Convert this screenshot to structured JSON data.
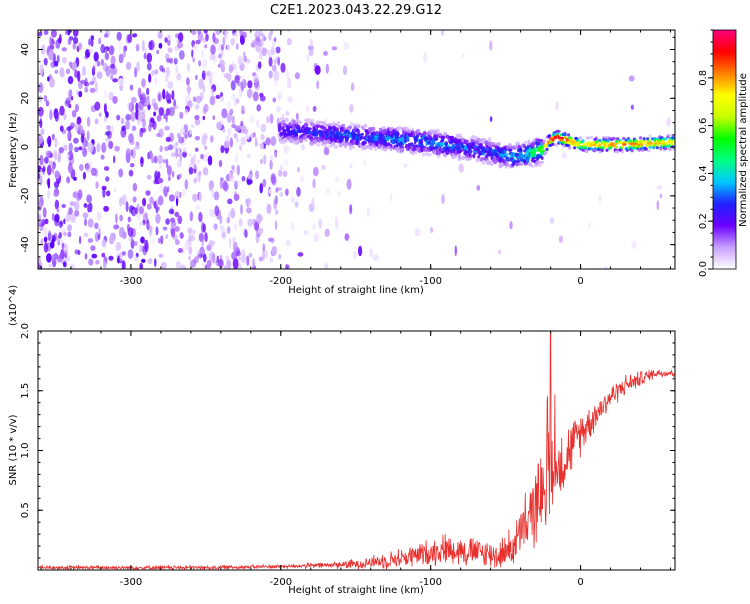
{
  "title": "C2E1.2023.043.22.29.G12",
  "chart_data": [
    {
      "type": "heatmap",
      "xlabel": "Height of straight line (km)",
      "ylabel": "Frequency (Hz)",
      "xlim": [
        -362,
        63
      ],
      "ylim": [
        -50,
        48
      ],
      "x_ticks": [
        -300,
        -200,
        -100,
        0
      ],
      "y_ticks": [
        -40,
        -20,
        0,
        20,
        40
      ],
      "colorbar": {
        "label": "Normalized spectral amplitude",
        "range": [
          0,
          1
        ],
        "ticks": [
          0.0,
          0.2,
          0.4,
          0.6,
          0.8
        ],
        "colormap": [
          "#ffffff",
          "#c8a0ff",
          "#6a00ff",
          "#2020ff",
          "#00c8ff",
          "#00ff80",
          "#00ff00",
          "#c8ff00",
          "#ffff00",
          "#ff8000",
          "#ff0000",
          "#ff0080"
        ]
      },
      "ridge": {
        "x": [
          -200,
          -180,
          -160,
          -140,
          -120,
          -100,
          -80,
          -60,
          -45,
          -35,
          -25,
          -20,
          -15,
          -10,
          0,
          10,
          30,
          63
        ],
        "y": [
          7,
          6,
          5,
          4,
          3,
          2,
          0,
          -2,
          -4,
          -3,
          -1,
          3,
          4,
          3,
          1,
          1,
          1,
          2
        ],
        "peak_amplitude": [
          0.3,
          0.3,
          0.35,
          0.35,
          0.4,
          0.4,
          0.35,
          0.35,
          0.4,
          0.5,
          0.7,
          0.9,
          0.95,
          0.9,
          0.7,
          0.8,
          0.85,
          0.75
        ]
      }
    },
    {
      "type": "line",
      "xlabel": "Height of straight line (km)",
      "ylabel": "SNR (10 * v/v)",
      "y_multiplier": "(x10^4)",
      "xlim": [
        -362,
        63
      ],
      "ylim": [
        0,
        2.0
      ],
      "x_ticks": [
        -300,
        -200,
        -100,
        0
      ],
      "y_ticks": [
        0.5,
        1.0,
        1.5,
        2.0
      ],
      "color": "#e8302e",
      "envelope": {
        "x": [
          -362,
          -300,
          -250,
          -200,
          -170,
          -150,
          -130,
          -110,
          -90,
          -70,
          -55,
          -45,
          -35,
          -25,
          -20,
          -15,
          -10,
          -5,
          0,
          10,
          20,
          30,
          40,
          50,
          63
        ],
        "base": [
          0.02,
          0.02,
          0.02,
          0.03,
          0.04,
          0.05,
          0.08,
          0.12,
          0.18,
          0.15,
          0.12,
          0.2,
          0.4,
          0.7,
          0.8,
          0.85,
          0.95,
          1.05,
          1.15,
          1.3,
          1.45,
          1.55,
          1.6,
          1.65,
          1.65
        ],
        "spread": [
          0.02,
          0.02,
          0.02,
          0.02,
          0.03,
          0.05,
          0.08,
          0.12,
          0.15,
          0.15,
          0.14,
          0.2,
          0.35,
          0.4,
          0.45,
          0.4,
          0.3,
          0.25,
          0.22,
          0.15,
          0.12,
          0.1,
          0.08,
          0.05,
          0.04
        ]
      },
      "spike": {
        "x": -20,
        "y": 2.0
      }
    }
  ]
}
